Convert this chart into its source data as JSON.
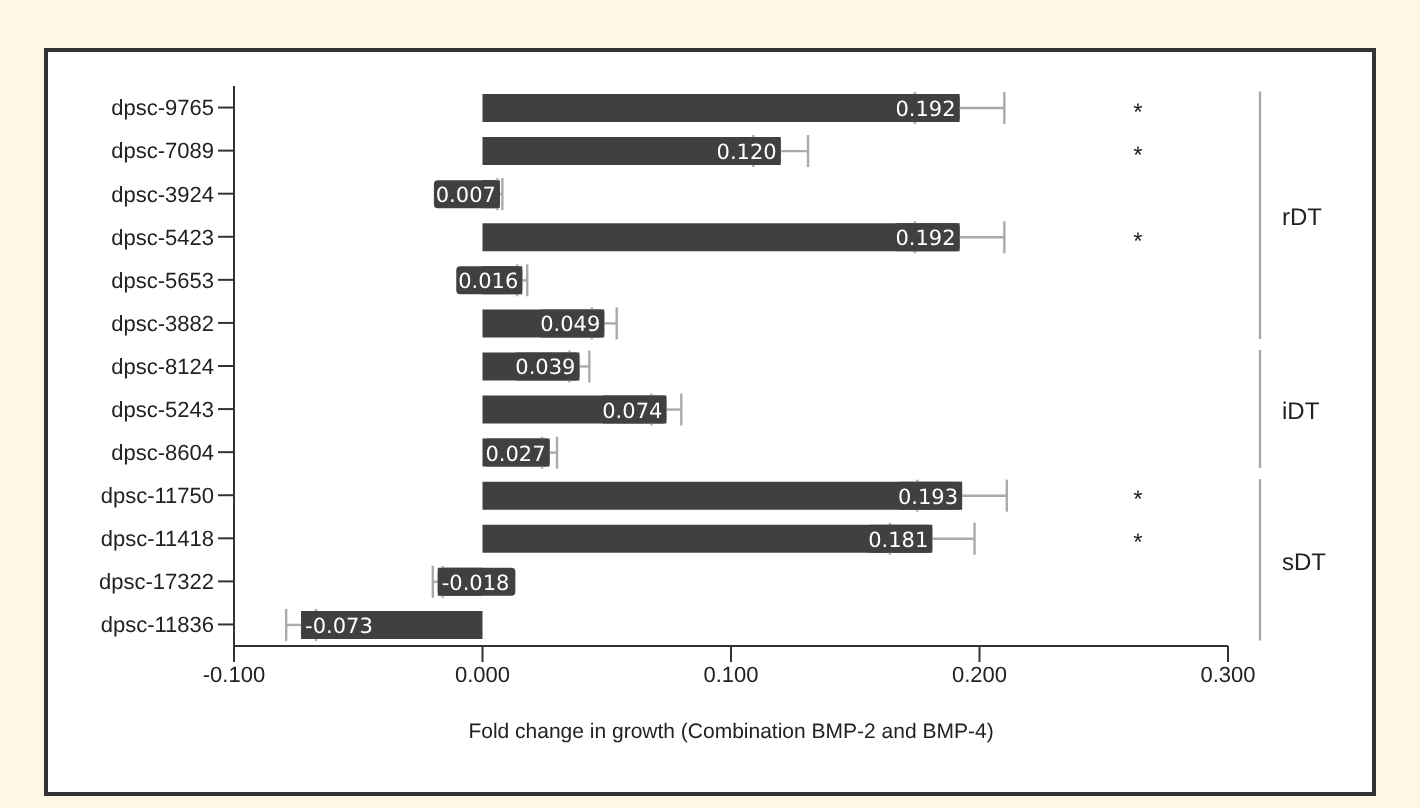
{
  "chart_data": {
    "type": "bar",
    "orientation": "horizontal",
    "xlabel": "Fold change in growth (Combination BMP-2 and BMP-4)",
    "categories": [
      "dpsc-9765",
      "dpsc-7089",
      "dpsc-3924",
      "dpsc-5423",
      "dpsc-5653",
      "dpsc-3882",
      "dpsc-8124",
      "dpsc-5243",
      "dpsc-8604",
      "dpsc-11750",
      "dpsc-11418",
      "dpsc-17322",
      "dpsc-11836"
    ],
    "values": [
      0.192,
      0.12,
      0.007,
      0.192,
      0.016,
      0.049,
      0.039,
      0.074,
      0.027,
      0.193,
      0.181,
      -0.018,
      -0.073
    ],
    "value_labels": [
      "0.192",
      "0.120",
      "0.007",
      "0.192",
      "0.016",
      "0.049",
      "0.039",
      "0.074",
      "0.027",
      "0.193",
      "0.181",
      "-0.018",
      "-0.073"
    ],
    "errors": [
      0.018,
      0.011,
      0.001,
      0.018,
      0.002,
      0.005,
      0.004,
      0.006,
      0.003,
      0.018,
      0.017,
      0.002,
      0.006
    ],
    "color": "#404040",
    "xlim": [
      -0.1,
      0.3
    ],
    "xticks": [
      {
        "value": -0.1,
        "label": "-0.100"
      },
      {
        "value": 0,
        "label": "0.000"
      },
      {
        "value": 0.1,
        "label": "0.100"
      },
      {
        "value": 0.2,
        "label": "0.200"
      },
      {
        "value": 0.3,
        "label": "0.300"
      }
    ],
    "annotations": [
      "*",
      "*",
      "*",
      "*",
      "*",
      "rDT",
      "iDT",
      "sDT"
    ]
  }
}
